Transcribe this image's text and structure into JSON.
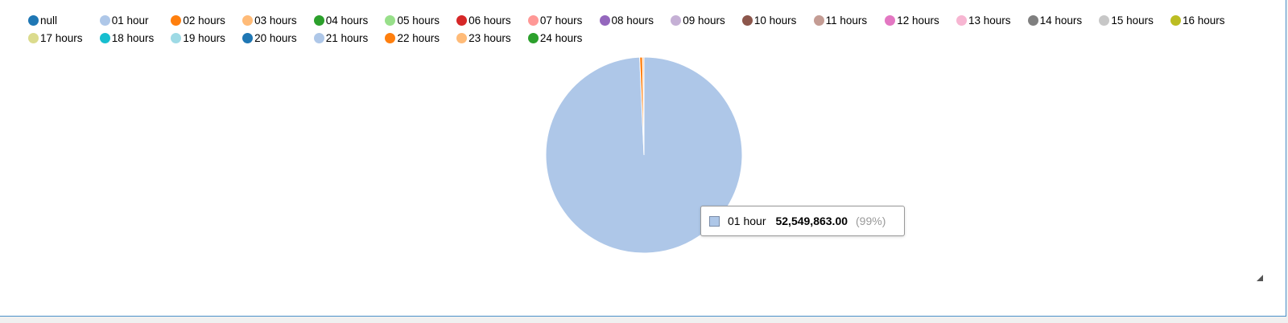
{
  "chart_data": {
    "type": "pie",
    "legend_position": "top",
    "legend": [
      {
        "label": "null",
        "color": "#1f77b4"
      },
      {
        "label": "01 hour",
        "color": "#aec7e8"
      },
      {
        "label": "02 hours",
        "color": "#ff7f0e"
      },
      {
        "label": "03 hours",
        "color": "#ffbb78"
      },
      {
        "label": "04 hours",
        "color": "#2ca02c"
      },
      {
        "label": "05 hours",
        "color": "#98df8a"
      },
      {
        "label": "06 hours",
        "color": "#d62728"
      },
      {
        "label": "07 hours",
        "color": "#ff9896"
      },
      {
        "label": "08 hours",
        "color": "#9467bd"
      },
      {
        "label": "09 hours",
        "color": "#c5b0d5"
      },
      {
        "label": "10 hours",
        "color": "#8c564b"
      },
      {
        "label": "11 hours",
        "color": "#c49c94"
      },
      {
        "label": "12 hours",
        "color": "#e377c2"
      },
      {
        "label": "13 hours",
        "color": "#f7b6d2"
      },
      {
        "label": "14 hours",
        "color": "#7f7f7f"
      },
      {
        "label": "15 hours",
        "color": "#c7c7c7"
      },
      {
        "label": "16 hours",
        "color": "#bcbd22"
      },
      {
        "label": "17 hours",
        "color": "#dbdb8d"
      },
      {
        "label": "18 hours",
        "color": "#17becf"
      },
      {
        "label": "19 hours",
        "color": "#9edae5"
      },
      {
        "label": "20 hours",
        "color": "#1f77b4"
      },
      {
        "label": "21 hours",
        "color": "#aec7e8"
      },
      {
        "label": "22 hours",
        "color": "#ff7f0e"
      },
      {
        "label": "23 hours",
        "color": "#ffbb78"
      },
      {
        "label": "24 hours",
        "color": "#2ca02c"
      }
    ],
    "slices": [
      {
        "label": "01 hour",
        "value": 52549863.0,
        "color": "#aec7e8"
      },
      {
        "label": "22 hours",
        "value": 250000,
        "color": "#ff7f0e"
      },
      {
        "label": "23 hours",
        "value": 120000,
        "color": "#ffbb78"
      }
    ],
    "tooltip": {
      "label": "01 hour",
      "value": "52,549,863.00",
      "percent": "(99%)",
      "color": "#aec7e8"
    }
  }
}
